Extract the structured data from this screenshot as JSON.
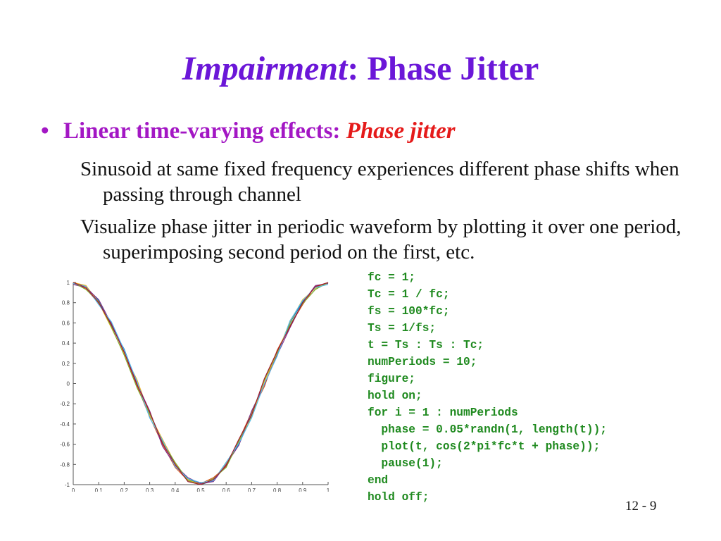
{
  "slide": {
    "title_italic": "Impairment",
    "title_rest": ": Phase Jitter",
    "bullet_dot": "•",
    "bullet_text": "Linear time-varying effects: ",
    "bullet_emph": "Phase jitter",
    "para1": "Sinusoid at same fixed frequency experiences different phase shifts when passing through channel",
    "para2": "Visualize phase jitter in periodic waveform by plotting it over one period, superimposing second period on the first, etc.",
    "code_lines": [
      "fc = 1;",
      "Tc = 1 / fc;",
      "fs = 100*fc;",
      "Ts = 1/fs;",
      "t = Ts : Ts : Tc;",
      "numPeriods = 10;",
      "figure;",
      "hold on;",
      "for i = 1 : numPeriods",
      "  phase = 0.05*randn(1, length(t));",
      "  plot(t, cos(2*pi*fc*t + phase));",
      "  pause(1);",
      "end",
      "hold off;"
    ],
    "page_number": "12 - 9"
  },
  "chart_data": {
    "type": "line",
    "title": "",
    "xlabel": "",
    "ylabel": "",
    "xlim": [
      0,
      1
    ],
    "ylim": [
      -1,
      1
    ],
    "x_ticks": [
      "0",
      "0.1",
      "0.2",
      "0.3",
      "0.4",
      "0.5",
      "0.6",
      "0.7",
      "0.8",
      "0.9",
      "1"
    ],
    "y_ticks": [
      "1",
      "0.8",
      "0.6",
      "0.4",
      "0.2",
      "0",
      "-0.2",
      "-0.4",
      "-0.6",
      "-0.8",
      "-1"
    ],
    "x": [
      0.0,
      0.05,
      0.1,
      0.15,
      0.2,
      0.25,
      0.3,
      0.35,
      0.4,
      0.45,
      0.5,
      0.55,
      0.6,
      0.65,
      0.7,
      0.75,
      0.8,
      0.85,
      0.9,
      0.95,
      1.0
    ],
    "series": [
      {
        "values": [
          1.0,
          0.96,
          0.82,
          0.57,
          0.34,
          0.01,
          -0.29,
          -0.57,
          -0.8,
          -0.94,
          -1.0,
          -0.96,
          -0.78,
          -0.6,
          -0.32,
          0.03,
          0.29,
          0.6,
          0.81,
          0.95,
          1.0
        ]
      },
      {
        "values": [
          0.99,
          0.94,
          0.79,
          0.6,
          0.3,
          -0.02,
          -0.33,
          -0.6,
          -0.83,
          -0.96,
          -0.99,
          -0.93,
          -0.82,
          -0.56,
          -0.28,
          -0.03,
          0.33,
          0.57,
          0.78,
          0.96,
          0.99
        ]
      },
      {
        "values": [
          1.0,
          0.97,
          0.8,
          0.55,
          0.29,
          0.04,
          -0.31,
          -0.55,
          -0.79,
          -0.95,
          -1.0,
          -0.95,
          -0.79,
          -0.58,
          -0.33,
          0.02,
          0.3,
          0.61,
          0.83,
          0.94,
          1.0
        ]
      },
      {
        "values": [
          0.98,
          0.95,
          0.83,
          0.59,
          0.32,
          0.0,
          -0.27,
          -0.62,
          -0.81,
          -0.93,
          -0.99,
          -0.97,
          -0.8,
          -0.61,
          -0.27,
          -0.01,
          0.28,
          0.55,
          0.8,
          0.97,
          0.99
        ]
      },
      {
        "values": [
          1.0,
          0.93,
          0.81,
          0.56,
          0.28,
          -0.04,
          -0.3,
          -0.58,
          -0.78,
          -0.96,
          -1.0,
          -0.94,
          -0.83,
          -0.57,
          -0.3,
          0.04,
          0.31,
          0.58,
          0.79,
          0.93,
          1.0
        ]
      },
      {
        "values": [
          0.99,
          0.96,
          0.78,
          0.61,
          0.33,
          0.02,
          -0.34,
          -0.56,
          -0.82,
          -0.94,
          -0.98,
          -0.96,
          -0.78,
          -0.59,
          -0.34,
          0.0,
          0.27,
          0.62,
          0.82,
          0.95,
          0.98
        ]
      },
      {
        "values": [
          1.0,
          0.95,
          0.8,
          0.58,
          0.31,
          -0.01,
          -0.28,
          -0.59,
          -0.8,
          -0.97,
          -1.0,
          -0.95,
          -0.81,
          -0.55,
          -0.31,
          0.05,
          0.32,
          0.56,
          0.8,
          0.96,
          1.0
        ]
      }
    ],
    "colors": [
      "#0072bd",
      "#d95319",
      "#edb120",
      "#7e2f8e",
      "#77ac30",
      "#4dbeee",
      "#a2142f"
    ],
    "grid": false
  }
}
